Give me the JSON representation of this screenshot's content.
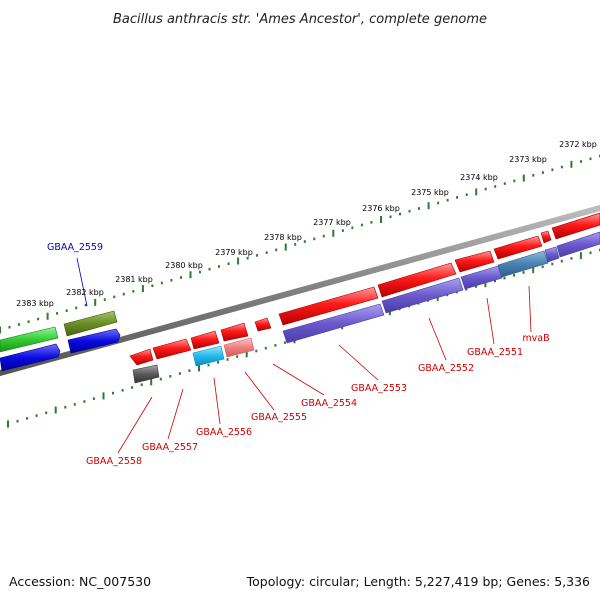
{
  "title": "Bacillus anthracis str. 'Ames Ancestor', complete genome",
  "footer": {
    "accession": "Accession: NC_007530",
    "summary": "Topology: circular; Length: 5,227,419 bp; Genes: 5,336"
  },
  "scale": {
    "unit": "kbp",
    "labels": [
      "2372 kbp",
      "2373 kbp",
      "2374 kbp",
      "2375 kbp",
      "2376 kbp",
      "2377 kbp",
      "2378 kbp",
      "2379 kbp",
      "2380 kbp",
      "2381 kbp",
      "2382 kbp",
      "2383 kbp"
    ],
    "outer_tick_color": "#2a7d2a",
    "inner_tick_color": "#2a7d2a",
    "backbone_color": "#808080"
  },
  "genes": [
    {
      "name": "GBAA_2559",
      "label_color": "#0000cc"
    },
    {
      "name": "GBAA_2558",
      "label_color": "#cc0000"
    },
    {
      "name": "GBAA_2557",
      "label_color": "#cc0000"
    },
    {
      "name": "GBAA_2556",
      "label_color": "#cc0000"
    },
    {
      "name": "GBAA_2555",
      "label_color": "#cc0000"
    },
    {
      "name": "GBAA_2554",
      "label_color": "#cc0000"
    },
    {
      "name": "GBAA_2553",
      "label_color": "#cc0000"
    },
    {
      "name": "GBAA_2552",
      "label_color": "#cc0000"
    },
    {
      "name": "GBAA_2551",
      "label_color": "#cc0000"
    },
    {
      "name": "mvaB",
      "label_color": "#cc0000"
    }
  ],
  "colors": {
    "forward_cds": "#ee1111",
    "reverse_cds": "#6a5acd",
    "green": "#33cc33",
    "olive": "#6b8e23",
    "blue": "#0a0ae0",
    "gray": "#5a5a5a",
    "cyan": "#22bbee",
    "pink": "#f08080",
    "steelblue": "#4682b4"
  }
}
